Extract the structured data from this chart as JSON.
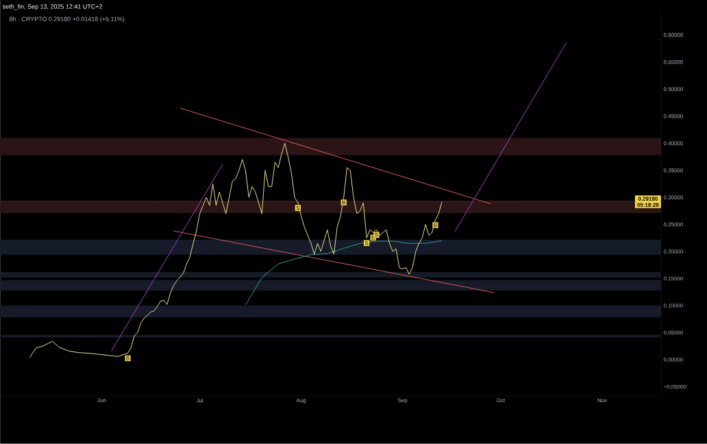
{
  "chart_data": {
    "type": "line",
    "title": "8h · CRYPTO  0.29180  +0.01418 (+5.11%)",
    "annotations": [
      "seth_fin, Sep 13, 2025 12:41 UTC+2",
      {
        "text": "B",
        "x": "2025-06-09",
        "y": 0.012
      },
      {
        "text": "S",
        "x": "2025-07-31",
        "y": 0.29
      },
      {
        "text": "B",
        "x": "2025-08-14",
        "y": 0.3
      },
      {
        "text": "S",
        "x": "2025-08-21",
        "y": 0.225
      },
      {
        "text": "B",
        "x": "2025-08-23",
        "y": 0.235
      },
      {
        "text": "S",
        "x": "2025-08-24",
        "y": 0.24
      },
      {
        "text": "B",
        "x": "2025-09-11",
        "y": 0.258
      }
    ],
    "xlim": [
      "2025-05-01",
      "2025-11-19"
    ],
    "xticks": [
      {
        "value": "2025-06-01",
        "label": "Jun"
      },
      {
        "value": "2025-07-01",
        "label": "Jul"
      },
      {
        "value": "2025-08-01",
        "label": "Aug"
      },
      {
        "value": "2025-09-01",
        "label": "Sep"
      },
      {
        "value": "2025-10-01",
        "label": "Oct"
      },
      {
        "value": "2025-11-01",
        "label": "Nov"
      }
    ],
    "ylim": [
      -0.067,
      0.642
    ],
    "yticks": [
      {
        "value": -0.05,
        "label": "−0.05000"
      },
      {
        "value": 0,
        "label": "0.00000"
      },
      {
        "value": 0.05,
        "label": "0.05000"
      },
      {
        "value": 0.1,
        "label": "0.10000"
      },
      {
        "value": 0.15,
        "label": "0.15000"
      },
      {
        "value": 0.2,
        "label": "0.20000"
      },
      {
        "value": 0.25,
        "label": "0.25000"
      },
      {
        "value": 0.3,
        "label": "0.30000"
      },
      {
        "value": 0.35,
        "label": "0.35000"
      },
      {
        "value": 0.4,
        "label": "0.40000"
      },
      {
        "value": 0.45,
        "label": "0.45000"
      },
      {
        "value": 0.5,
        "label": "0.50000"
      },
      {
        "value": 0.55,
        "label": "0.55000"
      },
      {
        "value": 0.6,
        "label": "0.60000"
      }
    ],
    "marker": "none",
    "bands": [
      {
        "axis": "y",
        "from": 0.378,
        "to": 0.41,
        "color": "#2a1416"
      },
      {
        "axis": "y",
        "from": 0.271,
        "to": 0.294,
        "color": "#2a1416"
      },
      {
        "axis": "y",
        "from": 0.194,
        "to": 0.222,
        "color": "#151b28"
      },
      {
        "axis": "y",
        "from": 0.152,
        "to": 0.162,
        "color": "#151b28"
      },
      {
        "axis": "y",
        "from": 0.128,
        "to": 0.147,
        "color": "#151b28"
      },
      {
        "axis": "y",
        "from": 0.078,
        "to": 0.1,
        "color": "#151b28"
      },
      {
        "axis": "y",
        "from": 0.041,
        "to": 0.046,
        "color": "#151b28"
      }
    ],
    "ref_lines": [
      {
        "axis": "y",
        "value": 0.2918,
        "label": "0.29180 05:18:28",
        "color": "#f5d547",
        "line_style": "dotted"
      }
    ],
    "series": [
      {
        "color": "#e05a5a",
        "x": [
          "2025-06-25",
          "2025-09-28"
        ],
        "values": [
          0.465,
          0.288
        ]
      },
      {
        "color": "#e05a5a",
        "x": [
          "2025-06-23",
          "2025-09-29"
        ],
        "values": [
          0.238,
          0.124
        ]
      },
      {
        "color": "#b040d0",
        "x": [
          "2025-06-04",
          "2025-07-08"
        ],
        "values": [
          0.016,
          0.361
        ]
      },
      {
        "color": "#b040d0",
        "x": [
          "2025-09-17",
          "2025-10-21"
        ],
        "values": [
          0.237,
          0.586
        ]
      },
      {
        "color": "#2a9d9a",
        "x": [
          "2025-07-15",
          "2025-07-20",
          "2025-07-25",
          "2025-07-30",
          "2025-08-04",
          "2025-08-09",
          "2025-08-14",
          "2025-08-19",
          "2025-08-24",
          "2025-08-29",
          "2025-09-03",
          "2025-09-08",
          "2025-09-13"
        ],
        "values": [
          0.101,
          0.152,
          0.177,
          0.186,
          0.194,
          0.196,
          0.206,
          0.215,
          0.219,
          0.219,
          0.215,
          0.215,
          0.22
        ]
      },
      {
        "color": "#ecdf8a",
        "x": [
          "2025-05-10",
          "2025-05-12",
          "2025-05-14",
          "2025-05-17",
          "2025-05-19",
          "2025-05-22",
          "2025-05-25",
          "2025-05-28",
          "2025-05-31",
          "2025-06-03",
          "2025-06-06",
          "2025-06-09",
          "2025-06-10",
          "2025-06-11",
          "2025-06-12",
          "2025-06-13",
          "2025-06-14",
          "2025-06-15",
          "2025-06-16",
          "2025-06-17",
          "2025-06-18",
          "2025-06-19",
          "2025-06-20",
          "2025-06-21",
          "2025-06-22",
          "2025-06-23",
          "2025-06-24",
          "2025-06-25",
          "2025-06-26",
          "2025-06-27",
          "2025-06-28",
          "2025-06-29",
          "2025-06-30",
          "2025-07-01",
          "2025-07-02",
          "2025-07-03",
          "2025-07-04",
          "2025-07-05",
          "2025-07-06",
          "2025-07-07",
          "2025-07-08",
          "2025-07-09",
          "2025-07-10",
          "2025-07-11",
          "2025-07-12",
          "2025-07-13",
          "2025-07-14",
          "2025-07-15",
          "2025-07-16",
          "2025-07-17",
          "2025-07-18",
          "2025-07-19",
          "2025-07-20",
          "2025-07-21",
          "2025-07-22",
          "2025-07-23",
          "2025-07-24",
          "2025-07-25",
          "2025-07-26",
          "2025-07-27",
          "2025-07-28",
          "2025-07-29",
          "2025-07-30",
          "2025-07-31",
          "2025-08-01",
          "2025-08-02",
          "2025-08-03",
          "2025-08-04",
          "2025-08-05",
          "2025-08-06",
          "2025-08-07",
          "2025-08-08",
          "2025-08-09",
          "2025-08-10",
          "2025-08-11",
          "2025-08-12",
          "2025-08-13",
          "2025-08-14",
          "2025-08-15",
          "2025-08-16",
          "2025-08-17",
          "2025-08-18",
          "2025-08-19",
          "2025-08-20",
          "2025-08-21",
          "2025-08-22",
          "2025-08-23",
          "2025-08-24",
          "2025-08-25",
          "2025-08-26",
          "2025-08-27",
          "2025-08-28",
          "2025-08-29",
          "2025-08-30",
          "2025-08-31",
          "2025-09-01",
          "2025-09-02",
          "2025-09-03",
          "2025-09-04",
          "2025-09-05",
          "2025-09-06",
          "2025-09-07",
          "2025-09-08",
          "2025-09-09",
          "2025-09-10",
          "2025-09-11",
          "2025-09-12",
          "2025-09-13"
        ],
        "values": [
          0.004,
          0.022,
          0.025,
          0.034,
          0.023,
          0.016,
          0.013,
          0.012,
          0.01,
          0.008,
          0.006,
          0.012,
          0.022,
          0.044,
          0.05,
          0.068,
          0.077,
          0.082,
          0.088,
          0.09,
          0.098,
          0.108,
          0.11,
          0.102,
          0.123,
          0.137,
          0.146,
          0.153,
          0.16,
          0.177,
          0.19,
          0.215,
          0.238,
          0.27,
          0.285,
          0.3,
          0.285,
          0.325,
          0.285,
          0.31,
          0.29,
          0.27,
          0.3,
          0.33,
          0.335,
          0.35,
          0.37,
          0.35,
          0.3,
          0.32,
          0.31,
          0.29,
          0.27,
          0.35,
          0.32,
          0.32,
          0.365,
          0.355,
          0.38,
          0.4,
          0.375,
          0.345,
          0.3,
          0.29,
          0.265,
          0.245,
          0.23,
          0.215,
          0.195,
          0.215,
          0.2,
          0.22,
          0.24,
          0.21,
          0.195,
          0.245,
          0.265,
          0.3,
          0.355,
          0.35,
          0.3,
          0.27,
          0.275,
          0.29,
          0.225,
          0.24,
          0.235,
          0.24,
          0.23,
          0.235,
          0.24,
          0.215,
          0.2,
          0.205,
          0.17,
          0.168,
          0.17,
          0.158,
          0.17,
          0.2,
          0.215,
          0.225,
          0.25,
          0.23,
          0.235,
          0.258,
          0.27,
          0.2918
        ]
      }
    ]
  }
}
